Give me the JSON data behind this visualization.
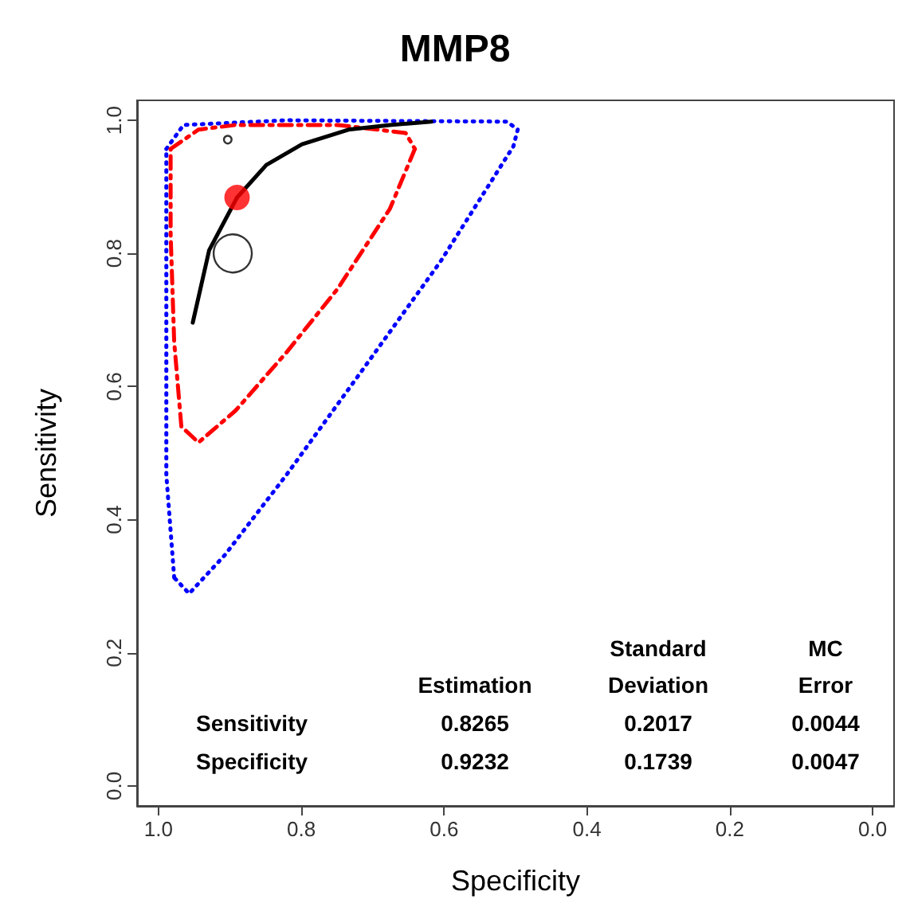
{
  "chart_data": {
    "type": "line",
    "title": "MMP8",
    "xlabel": "Specificity",
    "ylabel": "Sensitivity",
    "xlim": [
      1.03,
      -0.03
    ],
    "ylim": [
      -0.03,
      1.03
    ],
    "xticks": [
      {
        "value": 1,
        "label": "1.0"
      },
      0.8,
      0.6,
      0.4,
      0.2,
      {
        "value": 0,
        "label": "0.0"
      }
    ],
    "yticks": [
      {
        "value": 0,
        "label": "0.0"
      },
      0.2,
      0.4,
      0.6,
      0.8,
      {
        "value": 1,
        "label": "1.0"
      }
    ],
    "grid": false,
    "series": [
      {
        "type": "line",
        "color": "#0000ff",
        "line_style": "dotted",
        "marker": "none",
        "x": [
          0.989,
          0.965,
          0.821,
          0.512,
          0.497
        ],
        "values": [
          0.957,
          0.993,
          1.0,
          0.998,
          0.986
        ]
      },
      {
        "type": "line",
        "color": "#0000ff",
        "line_style": "dotted",
        "marker": "none",
        "x": [
          0.497,
          0.503,
          0.605,
          0.713,
          0.821,
          0.907,
          0.957,
          0.978
        ],
        "values": [
          0.986,
          0.961,
          0.788,
          0.627,
          0.467,
          0.347,
          0.289,
          0.313
        ]
      },
      {
        "type": "line",
        "color": "#0000ff",
        "line_style": "dotted",
        "marker": "none",
        "x": [
          0.978,
          0.989,
          0.989,
          0.989
        ],
        "values": [
          0.313,
          0.467,
          0.788,
          0.957
        ]
      },
      {
        "type": "line",
        "color": "#ff0000",
        "line_style": "dashed",
        "marker": "none",
        "x": [
          0.983,
          0.944,
          0.892,
          0.749,
          0.654,
          0.641
        ],
        "values": [
          0.957,
          0.986,
          0.993,
          0.993,
          0.981,
          0.957
        ]
      },
      {
        "type": "line",
        "color": "#ff0000",
        "line_style": "dashed",
        "marker": "none",
        "x": [
          0.641,
          0.676,
          0.749,
          0.821,
          0.892,
          0.944,
          0.968
        ],
        "values": [
          0.957,
          0.867,
          0.747,
          0.651,
          0.564,
          0.516,
          0.54
        ]
      },
      {
        "type": "line",
        "color": "#ff0000",
        "line_style": "dashed",
        "marker": "none",
        "x": [
          0.968,
          0.978,
          0.983,
          0.983
        ],
        "values": [
          0.54,
          0.667,
          0.829,
          0.957
        ]
      },
      {
        "type": "line",
        "color": "#000000",
        "line_style": "solid",
        "marker": "none",
        "x": [
          0.952,
          0.929,
          0.89,
          0.849,
          0.799,
          0.734,
          0.676,
          0.618
        ],
        "values": [
          0.696,
          0.805,
          0.884,
          0.933,
          0.964,
          0.986,
          0.993,
          0.998
        ]
      },
      {
        "type": "bubble",
        "color": "#000000",
        "marker": "circle",
        "x": [
          0.896,
          0.903
        ],
        "values": [
          0.8,
          0.971
        ],
        "sizes": [
          1,
          0.04
        ]
      },
      {
        "type": "scatter",
        "color": "#ff0000",
        "marker": "circle",
        "x": [
          0.89
        ],
        "values": [
          0.884
        ]
      }
    ],
    "annotations": [
      "Estimation",
      "Standard\nDeviation",
      "MC\nError",
      "Sensitivity",
      "0.8265",
      "0.2017",
      "0.0044",
      "Specificity",
      "0.9232",
      "0.1739",
      "0.0047"
    ]
  }
}
